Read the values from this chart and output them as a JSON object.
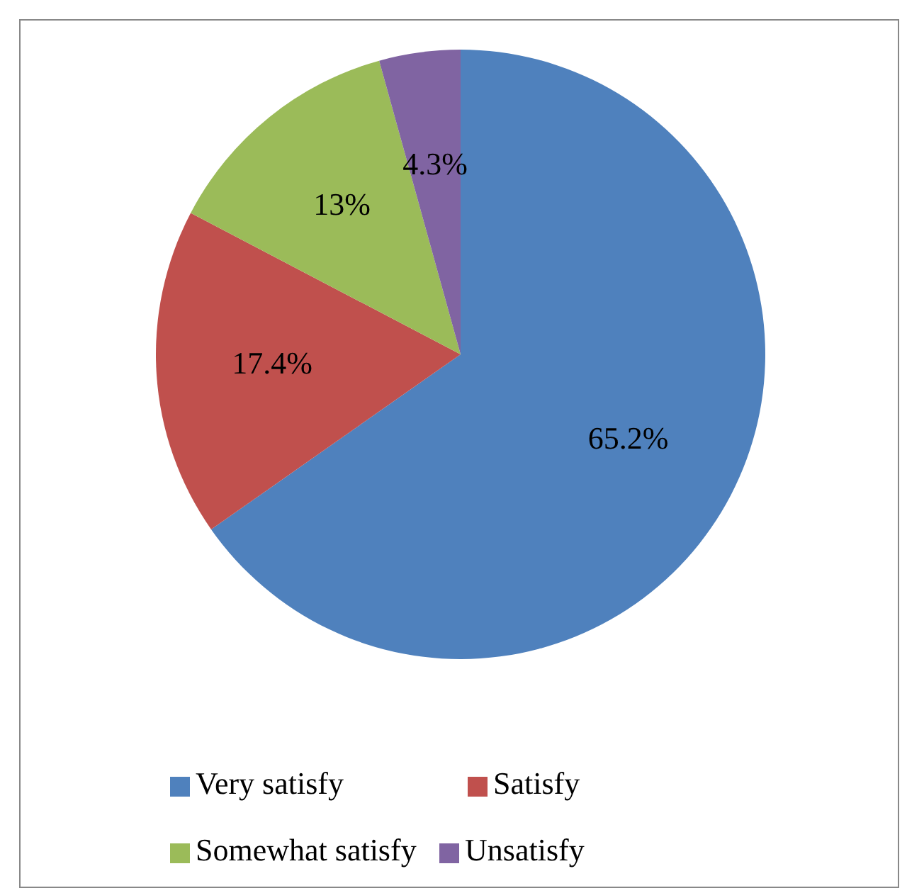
{
  "chart_data": {
    "type": "pie",
    "categories": [
      "Very satisfy",
      "Satisfy",
      "Somewhat satisfy",
      "Unsatisfy"
    ],
    "values": [
      65.2,
      17.4,
      13,
      4.3
    ],
    "colors": [
      "#4f81bd",
      "#c0504d",
      "#9bbb59",
      "#8064a2"
    ],
    "value_labels": [
      "65.2%",
      "17.4%",
      "13%",
      "4.3%"
    ],
    "legend": "bottom"
  }
}
